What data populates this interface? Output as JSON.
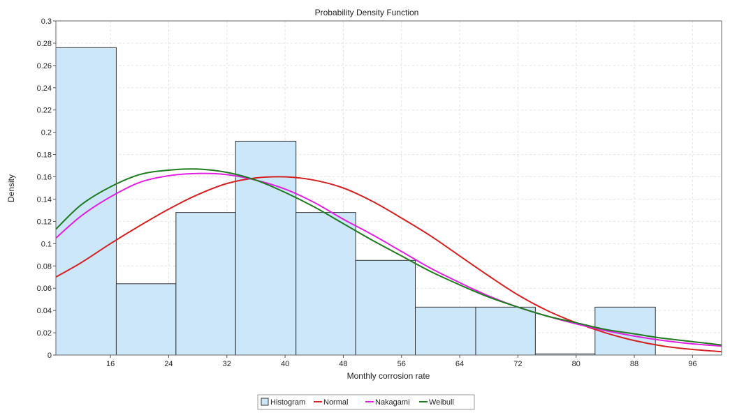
{
  "chart_data": {
    "type": "bar",
    "title": "Probability Density Function",
    "xlabel": "Monthly corrosion rate",
    "ylabel": "Density",
    "xlim": [
      8.5,
      100
    ],
    "ylim": [
      0,
      0.3
    ],
    "x_ticks": [
      16,
      24,
      32,
      40,
      48,
      56,
      64,
      72,
      80,
      88,
      96
    ],
    "y_ticks": [
      0,
      0.02,
      0.04,
      0.06,
      0.08,
      0.1,
      0.12,
      0.14,
      0.16,
      0.18,
      0.2,
      0.22,
      0.24,
      0.26,
      0.28,
      0.3
    ],
    "grid": true,
    "histogram": {
      "name": "Histogram",
      "fill": "#cce6fa",
      "edge": "#333333",
      "bin_edges": [
        8.5,
        16.8,
        25.0,
        33.2,
        41.5,
        49.7,
        57.9,
        66.2,
        74.4,
        82.6,
        90.9,
        99.1
      ],
      "densities": [
        0.276,
        0.064,
        0.128,
        0.192,
        0.128,
        0.085,
        0.043,
        0.043,
        0.001,
        0.043
      ]
    },
    "series": [
      {
        "name": "Normal",
        "color": "#d42020",
        "x": [
          8.5,
          12,
          16,
          20,
          24,
          28,
          32,
          36,
          40,
          44,
          48,
          52,
          56,
          60,
          64,
          68,
          72,
          76,
          80,
          84,
          88,
          92,
          96,
          100
        ],
        "y": [
          0.07,
          0.083,
          0.1,
          0.116,
          0.131,
          0.144,
          0.154,
          0.159,
          0.16,
          0.157,
          0.15,
          0.138,
          0.123,
          0.107,
          0.089,
          0.071,
          0.054,
          0.04,
          0.029,
          0.02,
          0.013,
          0.008,
          0.005,
          0.003
        ]
      },
      {
        "name": "Nakagami",
        "color": "#e020e0",
        "x": [
          8.5,
          12,
          16,
          20,
          24,
          28,
          32,
          36,
          40,
          44,
          48,
          52,
          56,
          60,
          64,
          68,
          72,
          76,
          80,
          84,
          88,
          92,
          96,
          100
        ],
        "y": [
          0.105,
          0.125,
          0.142,
          0.155,
          0.161,
          0.163,
          0.162,
          0.157,
          0.149,
          0.137,
          0.122,
          0.108,
          0.093,
          0.078,
          0.065,
          0.053,
          0.043,
          0.035,
          0.028,
          0.022,
          0.017,
          0.013,
          0.01,
          0.008
        ]
      },
      {
        "name": "Weibull",
        "color": "#1e7a1e",
        "x": [
          8.5,
          12,
          16,
          20,
          24,
          28,
          32,
          36,
          40,
          44,
          48,
          52,
          56,
          60,
          64,
          68,
          72,
          76,
          80,
          84,
          88,
          92,
          96,
          100
        ],
        "y": [
          0.113,
          0.135,
          0.151,
          0.162,
          0.166,
          0.167,
          0.164,
          0.157,
          0.146,
          0.133,
          0.118,
          0.103,
          0.089,
          0.075,
          0.063,
          0.052,
          0.043,
          0.035,
          0.029,
          0.023,
          0.019,
          0.015,
          0.012,
          0.009
        ]
      }
    ],
    "legend": [
      "Histogram",
      "Normal",
      "Nakagami",
      "Weibull"
    ],
    "legend_position": "bottom-center"
  }
}
